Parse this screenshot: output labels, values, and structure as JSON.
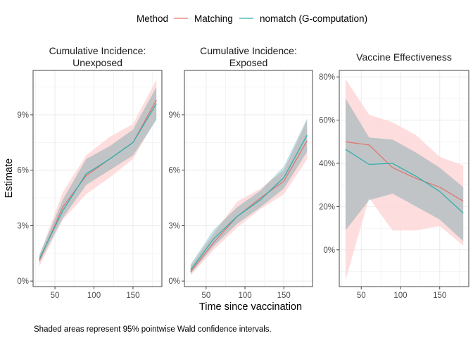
{
  "legend": {
    "title": "Method",
    "items": [
      {
        "label": "Matching",
        "color": "#E0776F"
      },
      {
        "label": "nomatch (G-computation)",
        "color": "#33AFAF"
      }
    ]
  },
  "shared_ylabel": "Estimate",
  "shared_xlabel": "Time since vaccination",
  "caption": "Shaded areas represent 95% pointwise Wald confidence intervals.",
  "colors": {
    "matching_line": "#E0776F",
    "matching_fill": "#FDD7D7",
    "nomatch_line": "#33AFAF",
    "nomatch_fill": "#ACD8DB",
    "overlap_fill": "#C9CFD2",
    "panel_border": "#333333",
    "grid": "#EBEBEB"
  },
  "chart_data": [
    {
      "type": "line",
      "title": [
        "Cumulative Incidence:",
        "Unexposed"
      ],
      "x": [
        30,
        60,
        90,
        120,
        150,
        180
      ],
      "xlim": [
        22,
        187
      ],
      "ylim": [
        -0.003,
        0.114
      ],
      "yticks": [
        0,
        0.03,
        0.06,
        0.09
      ],
      "ytick_labels": [
        "0%",
        "3%",
        "6%",
        "9%"
      ],
      "xticks": [
        50,
        100,
        150
      ],
      "xtick_labels": [
        "50",
        "100",
        "150"
      ],
      "grid": true,
      "series": [
        {
          "name": "Matching",
          "values": [
            0.011,
            0.04,
            0.057,
            0.066,
            0.075,
            0.098
          ],
          "lower": [
            0.008,
            0.033,
            0.047,
            0.056,
            0.066,
            0.088
          ],
          "upper": [
            0.014,
            0.048,
            0.068,
            0.078,
            0.085,
            0.109
          ]
        },
        {
          "name": "nomatch (G-computation)",
          "values": [
            0.012,
            0.038,
            0.058,
            0.066,
            0.075,
            0.096
          ],
          "lower": [
            0.01,
            0.034,
            0.052,
            0.06,
            0.068,
            0.087
          ],
          "upper": [
            0.014,
            0.044,
            0.066,
            0.073,
            0.082,
            0.105
          ]
        }
      ]
    },
    {
      "type": "line",
      "title": [
        "Cumulative Incidence:",
        "Exposed"
      ],
      "x": [
        30,
        60,
        90,
        120,
        150,
        180
      ],
      "xlim": [
        22,
        187
      ],
      "ylim": [
        -0.003,
        0.114
      ],
      "yticks": [
        0,
        0.03,
        0.06,
        0.09
      ],
      "ytick_labels": [
        "0%",
        "3%",
        "6%",
        "9%"
      ],
      "xticks": [
        50,
        100,
        150
      ],
      "xtick_labels": [
        "50",
        "100",
        "150"
      ],
      "grid": true,
      "series": [
        {
          "name": "Matching",
          "values": [
            0.005,
            0.021,
            0.035,
            0.045,
            0.054,
            0.076
          ],
          "lower": [
            0.003,
            0.017,
            0.029,
            0.039,
            0.047,
            0.066
          ],
          "upper": [
            0.008,
            0.026,
            0.043,
            0.05,
            0.06,
            0.087
          ]
        },
        {
          "name": "nomatch (G-computation)",
          "values": [
            0.006,
            0.023,
            0.035,
            0.044,
            0.056,
            0.079
          ],
          "lower": [
            0.004,
            0.019,
            0.031,
            0.04,
            0.05,
            0.07
          ],
          "upper": [
            0.009,
            0.028,
            0.04,
            0.049,
            0.062,
            0.088
          ]
        }
      ]
    },
    {
      "type": "line",
      "title": [
        "Vaccine Effectiveness"
      ],
      "x": [
        30,
        60,
        90,
        120,
        150,
        180
      ],
      "xlim": [
        22,
        187
      ],
      "ylim": [
        -0.17,
        0.83
      ],
      "yticks": [
        0,
        0.2,
        0.4,
        0.6,
        0.8
      ],
      "ytick_labels": [
        "0%",
        "20%",
        "40%",
        "60%",
        "80%"
      ],
      "xticks": [
        50,
        100,
        150
      ],
      "xtick_labels": [
        "50",
        "100",
        "150"
      ],
      "grid": true,
      "series": [
        {
          "name": "Matching",
          "values": [
            0.5,
            0.485,
            0.38,
            0.33,
            0.29,
            0.225
          ],
          "lower": [
            -0.14,
            0.24,
            0.09,
            0.09,
            0.11,
            0.02
          ],
          "upper": [
            0.79,
            0.625,
            0.59,
            0.53,
            0.43,
            0.39
          ]
        },
        {
          "name": "nomatch (G-computation)",
          "values": [
            0.465,
            0.395,
            0.4,
            0.34,
            0.27,
            0.17
          ],
          "lower": [
            0.09,
            0.23,
            0.26,
            0.2,
            0.14,
            0.04
          ],
          "upper": [
            0.7,
            0.52,
            0.51,
            0.45,
            0.38,
            0.29
          ]
        }
      ]
    }
  ]
}
